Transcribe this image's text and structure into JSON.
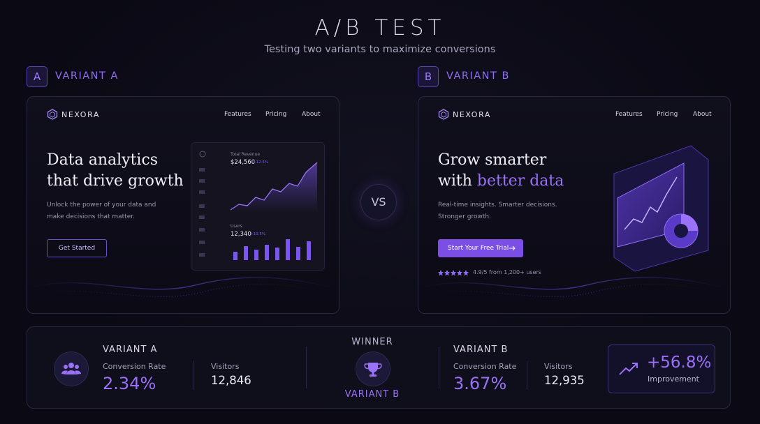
{
  "header": {
    "title": "A/B TEST",
    "subtitle": "Testing two variants to maximize conversions"
  },
  "variants": [
    {
      "badge": "A",
      "label": "VARIANT A",
      "brand": "NEXORA",
      "nav": [
        "Features",
        "Pricing",
        "About"
      ],
      "headline": [
        "Data analytics",
        "that drive growth"
      ],
      "body": [
        "Unlock the power of your data and",
        "make decisions that matter."
      ],
      "cta": "Get Started",
      "dashboard": {
        "revenue_label": "Total Revenue",
        "revenue": "$24,560",
        "revenue_change": "+12.5%",
        "users_label": "Users",
        "users": "12,340",
        "users_change": "+10.5%"
      }
    },
    {
      "badge": "B",
      "label": "VARIANT B",
      "brand": "NEXORA",
      "nav": [
        "Features",
        "Pricing",
        "About"
      ],
      "headline": [
        "Grow smarter",
        "with",
        "better data"
      ],
      "body": [
        "Real-time insights. Smarter decisions.",
        "Stronger growth."
      ],
      "cta": "Start Your Free Trial",
      "rating": "4.9/5 from 1,200+ users"
    }
  ],
  "vs": "VS",
  "results": {
    "a": {
      "label": "VARIANT A",
      "rate_label": "Conversion Rate",
      "rate": "2.34%",
      "visitors_label": "Visitors",
      "visitors": "12,846"
    },
    "winner_label": "WINNER",
    "winner": "VARIANT B",
    "b": {
      "label": "VARIANT B",
      "rate_label": "Conversion Rate",
      "rate": "3.67%",
      "visitors_label": "Visitors",
      "visitors": "12,935"
    },
    "improvement": "+56.8%",
    "improvement_label": "Improvement"
  }
}
